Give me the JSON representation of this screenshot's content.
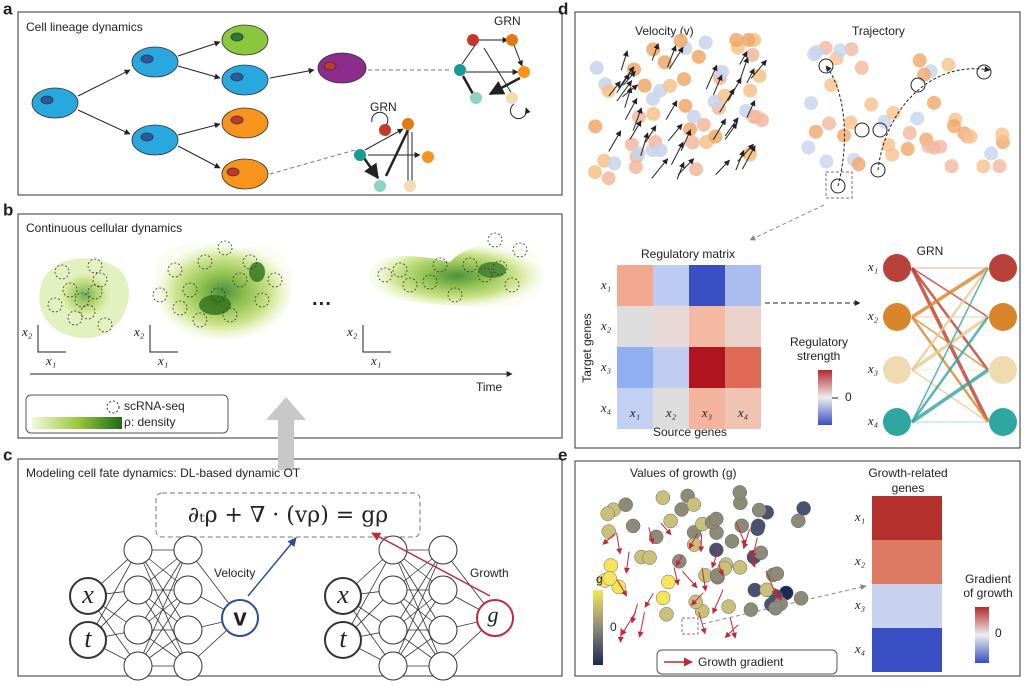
{
  "panels": {
    "a": {
      "label": "a",
      "title": "Cell lineage dynamics",
      "grn_top": "GRN",
      "grn_bottom": "GRN"
    },
    "b": {
      "label": "b",
      "title": "Continuous cellular dynamics",
      "y_axis": "x₂",
      "x_axis": "x₁",
      "ellipsis": "···",
      "time": "Time",
      "legend": [
        "scRNA-seq",
        "ρ: density"
      ]
    },
    "c": {
      "label": "c",
      "title": "Modeling cell fate dynamics: DL-based dynamic OT",
      "equation": "∂ₜρ + ∇ · (vρ) = gρ",
      "inputs": [
        "x",
        "t"
      ],
      "velocity_output": "v",
      "velocity_label": "Velocity",
      "growth_label": "Growth",
      "growth_output": "g"
    },
    "d": {
      "label": "d",
      "velocity_title": "Velocity (v)",
      "trajectory_title": "Trajectory",
      "matrix_title": "Regulatory matrix",
      "y_axis": "Target genes",
      "x_axis": "Source genes",
      "rows": [
        "x₁",
        "x₂",
        "x₃",
        "x₄"
      ],
      "cols": [
        "x₁",
        "x₂",
        "x₃",
        "x₄"
      ],
      "colorbar_title": [
        "Regulatory",
        "strength"
      ],
      "colorbar_tick": 0,
      "grn_title": "GRN",
      "nodes": [
        "x₁",
        "x₂",
        "x₃",
        "x₄"
      ]
    },
    "e": {
      "label": "e",
      "title": "Values of growth (g)",
      "colorbar_label": "g",
      "colorbar_tick": 0,
      "legend": "Growth gradient",
      "genes_title": [
        "Growth-related",
        "genes"
      ],
      "genes": [
        "x₁",
        "x₂",
        "x₃",
        "x₄"
      ],
      "gradient_title": [
        "Gradient",
        "of growth"
      ],
      "gradient_tick": 0
    }
  }
}
